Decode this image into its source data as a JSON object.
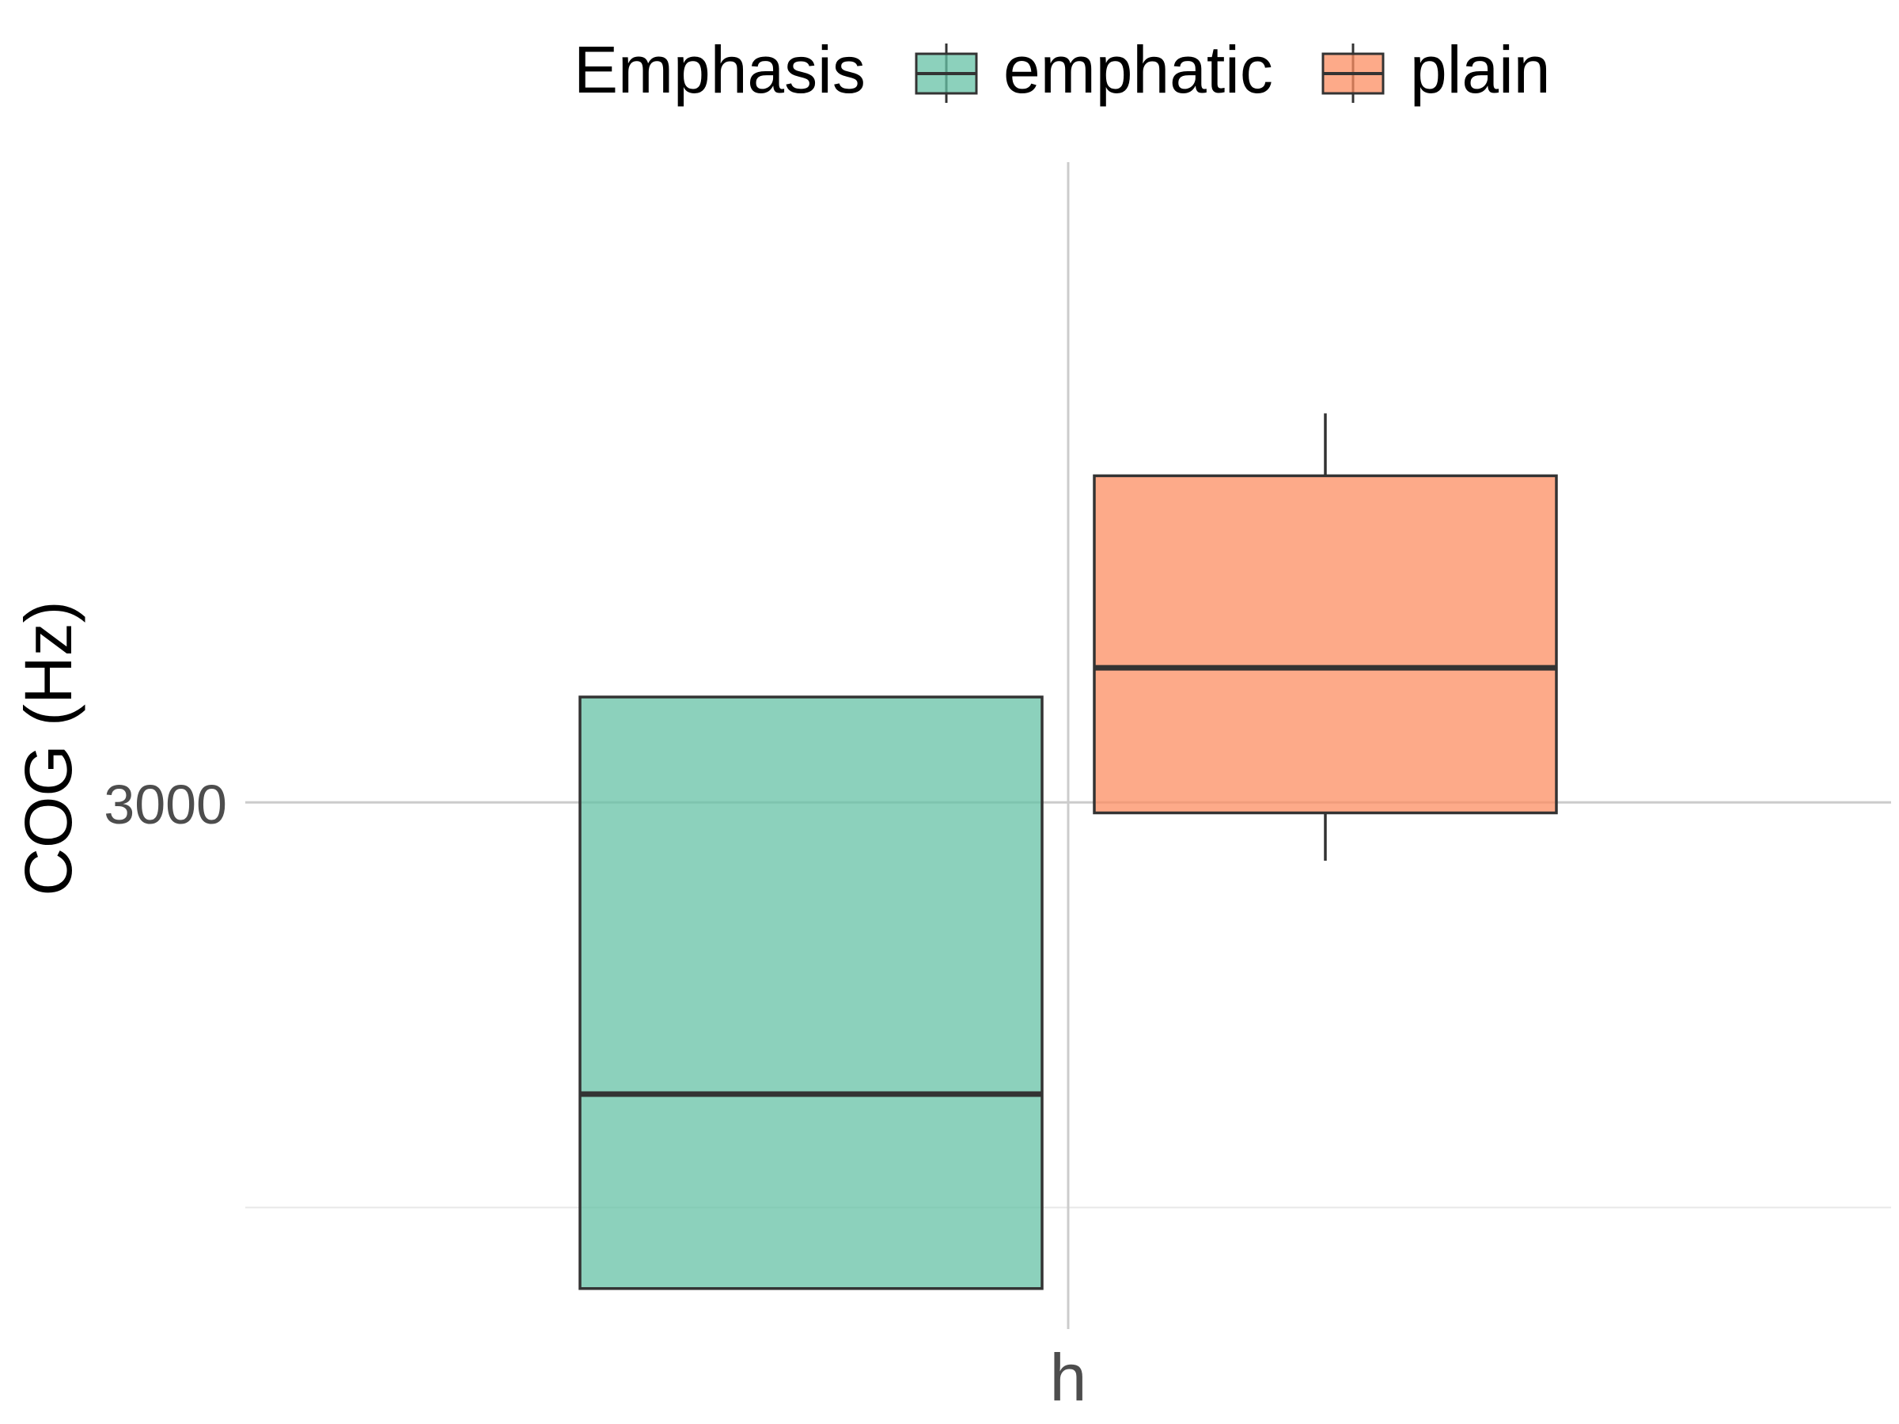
{
  "chart_data": {
    "type": "boxplot",
    "title": "",
    "xlabel": "",
    "ylabel": "COG (Hz)",
    "categories": [
      "h"
    ],
    "legend": {
      "title": "Emphasis",
      "position": "top"
    },
    "ylim": [
      2350,
      3790
    ],
    "yticks": [
      3000
    ],
    "grid": true,
    "series": [
      {
        "name": "emphatic",
        "color": "#66c2a5",
        "values": [
          {
            "category": "h",
            "lower": 2400,
            "q1": 2400,
            "median": 2640,
            "q3": 3130,
            "upper": 3130
          }
        ]
      },
      {
        "name": "plain",
        "color": "#fc8d62",
        "values": [
          {
            "category": "h",
            "lower": 2928,
            "q1": 2987,
            "median": 3166,
            "q3": 3403,
            "upper": 3480
          }
        ]
      }
    ]
  }
}
